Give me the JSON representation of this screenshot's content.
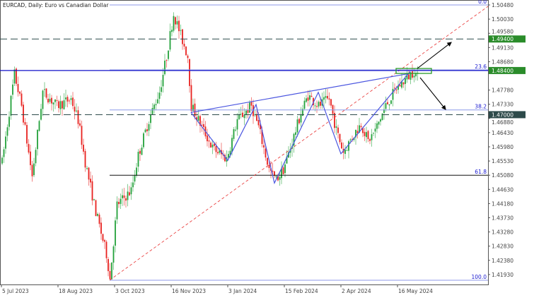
{
  "title": "EURCAD, Daily:  Euro vs Canadian Dollar",
  "colors": {
    "bull": "#22a13a",
    "bear": "#e8211f",
    "level_line": "#1010c8",
    "zigzag": "#4a55e0",
    "fib_trend": "#e83030",
    "tag_green": "#2a8c2a",
    "tag_dark": "#2d4a4a"
  },
  "chart_data": {
    "type": "candlestick",
    "symbol": "EURCAD",
    "timeframe": "Daily",
    "ylim": [
      1.4148,
      1.5058
    ],
    "y_ticks": [
      "1.50480",
      "1.50030",
      "1.49580",
      "1.49130",
      "1.48680",
      "1.47780",
      "1.47330",
      "1.46880",
      "1.46430",
      "1.45980",
      "1.45530",
      "1.45080",
      "1.44630",
      "1.44180",
      "1.43730",
      "1.43280",
      "1.42830",
      "1.42380",
      "1.41930"
    ],
    "x_ticks": [
      "5 Jul 2023",
      "18 Aug 2023",
      "3 Oct 2023",
      "16 Nov 2023",
      "3 Jan 2024",
      "15 Feb 2024",
      "2 Apr 2024",
      "16 May 2024"
    ],
    "approx_path_bar_price": [
      [
        0,
        1.4549
      ],
      [
        7,
        1.4829
      ],
      [
        11,
        1.4728
      ],
      [
        17,
        1.4504
      ],
      [
        23,
        1.4773
      ],
      [
        31,
        1.4728
      ],
      [
        39,
        1.475
      ],
      [
        43,
        1.4683
      ],
      [
        47,
        1.4549
      ],
      [
        53,
        1.4392
      ],
      [
        59,
        1.4258
      ],
      [
        61,
        1.4179
      ],
      [
        65,
        1.4414
      ],
      [
        73,
        1.4459
      ],
      [
        77,
        1.4571
      ],
      [
        83,
        1.4683
      ],
      [
        89,
        1.4773
      ],
      [
        93,
        1.4885
      ],
      [
        97,
        1.5019
      ],
      [
        101,
        1.4952
      ],
      [
        105,
        1.4885
      ],
      [
        107,
        1.4728
      ],
      [
        113,
        1.4661
      ],
      [
        119,
        1.4594
      ],
      [
        127,
        1.456
      ],
      [
        133,
        1.4683
      ],
      [
        141,
        1.4728
      ],
      [
        145,
        1.4661
      ],
      [
        151,
        1.4526
      ],
      [
        155,
        1.4493
      ],
      [
        159,
        1.4526
      ],
      [
        163,
        1.4594
      ],
      [
        169,
        1.4705
      ],
      [
        173,
        1.4761
      ],
      [
        179,
        1.4728
      ],
      [
        185,
        1.475
      ],
      [
        189,
        1.465
      ],
      [
        193,
        1.4582
      ],
      [
        199,
        1.4638
      ],
      [
        203,
        1.4672
      ],
      [
        207,
        1.4616
      ],
      [
        211,
        1.465
      ],
      [
        217,
        1.4728
      ],
      [
        223,
        1.4784
      ],
      [
        229,
        1.4817
      ],
      [
        233,
        1.484
      ],
      [
        235,
        1.4817
      ]
    ],
    "horizontal_levels": [
      {
        "price": 1.494,
        "label": "1.49400",
        "style": "dashed"
      },
      {
        "price": 1.484,
        "label": "1.48400",
        "style": "solid"
      },
      {
        "price": 1.47,
        "label": "1.47000",
        "style": "dashed"
      }
    ],
    "fibonacci": {
      "from_price": 1.4175,
      "to_price": 1.5048,
      "levels": [
        {
          "label": "0.0",
          "price": 1.5048
        },
        {
          "label": "23.6",
          "price": 1.4842
        },
        {
          "label": "38.2",
          "price": 1.4715
        },
        {
          "label": "61.8",
          "price": 1.4508
        },
        {
          "label": "100.0",
          "price": 1.4175
        }
      ]
    },
    "zigzag_prices": [
      1.4707,
      1.4555,
      1.4732,
      1.4483,
      1.4771,
      1.4576,
      1.4837
    ],
    "trendline_prices": [
      1.4707,
      1.4831
    ]
  }
}
